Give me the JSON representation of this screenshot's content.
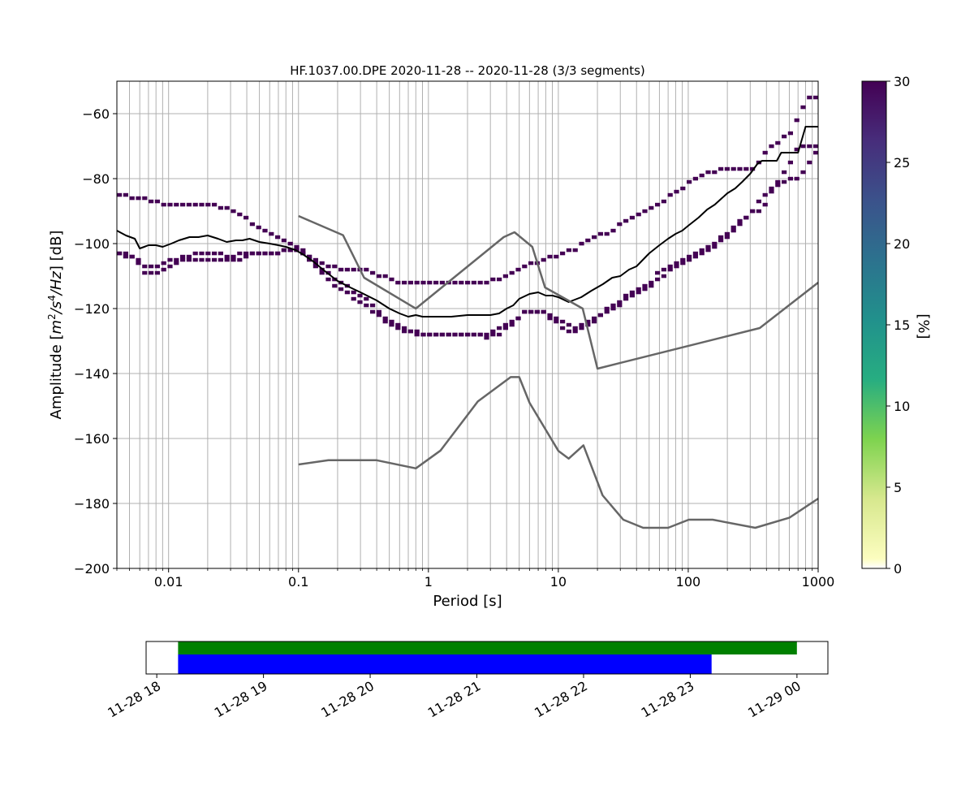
{
  "chart_data": [
    {
      "type": "heatmap",
      "title": "HF.1037.00.DPE   2020-11-28 -- 2020-11-28  (3/3 segments)",
      "xlabel": "Period [s]",
      "ylabel_prefix": "Amplitude [",
      "ylabel_unit_main": "m",
      "ylabel_unit_sup1": "2",
      "ylabel_unit_mid": "/s",
      "ylabel_unit_sup2": "4",
      "ylabel_unit_end": "/Hz",
      "ylabel_suffix": "] [dB]",
      "x_scale": "log",
      "xlim": [
        0.004,
        1000
      ],
      "ylim": [
        -200,
        -50
      ],
      "x_ticks": [
        0.01,
        0.1,
        1,
        10,
        100,
        1000
      ],
      "x_tick_labels": [
        "0.01",
        "0.1",
        "1",
        "10",
        "100",
        "1000"
      ],
      "y_ticks": [
        -200,
        -180,
        -160,
        -140,
        -120,
        -100,
        -80,
        -60
      ],
      "y_tick_labels": [
        "−200",
        "−180",
        "−160",
        "−140",
        "−120",
        "−100",
        "−80",
        "−60"
      ],
      "grid": true,
      "series": [
        {
          "kind": "mean-line",
          "color": "#000000",
          "x": [
            0.004,
            0.0047,
            0.0055,
            0.006,
            0.0065,
            0.007,
            0.008,
            0.009,
            0.0105,
            0.012,
            0.0145,
            0.017,
            0.02,
            0.024,
            0.028,
            0.033,
            0.037,
            0.042,
            0.05,
            0.06,
            0.07,
            0.08,
            0.095,
            0.11,
            0.13,
            0.16,
            0.2,
            0.25,
            0.3,
            0.4,
            0.5,
            0.6,
            0.7,
            0.8,
            0.9,
            1.0,
            1.5,
            2,
            2.5,
            3,
            3.5,
            4,
            4.5,
            5,
            6,
            7,
            8,
            9,
            10,
            12,
            15,
            18,
            22,
            26,
            30,
            35,
            40,
            50,
            60,
            70,
            80,
            90,
            100,
            120,
            140,
            160,
            200,
            230,
            260,
            300,
            340,
            370,
            400,
            480,
            520,
            600,
            700,
            800,
            1000
          ],
          "y": [
            -96,
            -97.5,
            -98.5,
            -101.5,
            -101,
            -100.5,
            -100.5,
            -101,
            -100,
            -99,
            -98,
            -98,
            -97.5,
            -98.5,
            -99.5,
            -99,
            -99,
            -98.5,
            -99.5,
            -100,
            -100.5,
            -101,
            -102,
            -103.5,
            -105.5,
            -108.5,
            -111.5,
            -113.5,
            -115,
            -117.5,
            -120,
            -121.5,
            -122.5,
            -122,
            -122.5,
            -122.5,
            -122.5,
            -122,
            -122,
            -122,
            -121.5,
            -120,
            -119,
            -117,
            -115.5,
            -115,
            -116,
            -116,
            -116.5,
            -118,
            -116.5,
            -114.5,
            -112.5,
            -110.5,
            -110,
            -108,
            -107,
            -103,
            -100.5,
            -98.5,
            -97,
            -96,
            -94.5,
            -92,
            -89.5,
            -88,
            -84.5,
            -83,
            -81,
            -78.5,
            -75.5,
            -74.5,
            -74.5,
            -74.5,
            -72,
            -72,
            -72,
            -64,
            -64
          ]
        },
        {
          "kind": "noise-model",
          "name": "NHNM",
          "color": "#666666",
          "x": [
            0.1,
            0.22,
            0.32,
            0.8,
            3.8,
            4.6,
            6.3,
            7.9,
            15.4,
            20,
            354.8,
            1000
          ],
          "y": [
            -91.5,
            -97.4,
            -110.5,
            -120,
            -98,
            -96.5,
            -101,
            -113.5,
            -120,
            -138.5,
            -126,
            -112
          ]
        },
        {
          "kind": "noise-model",
          "name": "NLNM",
          "color": "#666666",
          "x": [
            0.1,
            0.17,
            0.4,
            0.8,
            1.24,
            2.4,
            4.3,
            5,
            6,
            10,
            12,
            15.6,
            21.9,
            31.6,
            45,
            70,
            101,
            154,
            328,
            600,
            1000
          ],
          "y": [
            -168,
            -166.7,
            -166.7,
            -169.2,
            -163.7,
            -148.6,
            -141.1,
            -141.1,
            -149,
            -163.8,
            -166.2,
            -162.1,
            -177.5,
            -185,
            -187.5,
            -187.5,
            -185,
            -185,
            -187.5,
            -184.4,
            -178.5
          ]
        }
      ],
      "ppsd_bands": [
        {
          "name": "upper",
          "x": [
            0.004,
            0.005,
            0.0065,
            0.0085,
            0.012,
            0.02,
            0.03,
            0.04,
            0.06,
            0.08,
            0.1,
            0.12,
            0.15,
            0.2,
            0.3,
            0.45,
            0.6,
            0.8,
            1.2,
            2,
            3,
            4,
            5,
            6.5,
            8,
            10,
            13,
            16,
            20,
            25,
            30,
            40,
            50,
            60,
            75,
            90,
            110,
            130,
            170,
            220,
            300,
            400,
            600,
            800,
            1000
          ],
          "y": [
            -84.5,
            -85.5,
            -86.5,
            -87.5,
            -87.5,
            -87.5,
            -90,
            -93,
            -97,
            -100,
            -102,
            -104.5,
            -106.5,
            -107.5,
            -107.5,
            -110.5,
            -112,
            -111.5,
            -112.5,
            -112,
            -111.5,
            -110,
            -107,
            -106,
            -104.5,
            -103.5,
            -101.5,
            -99.5,
            -97.5,
            -96,
            -93.5,
            -91,
            -89,
            -87,
            -84.5,
            -82.5,
            -79.5,
            -78.5,
            -77.5,
            -76.5,
            -77.5,
            -70.5,
            -65.5,
            -54.5,
            -54.5
          ]
        },
        {
          "name": "middle",
          "x": [
            0.004,
            0.005,
            0.0065,
            0.008,
            0.01,
            0.013,
            0.017,
            0.022,
            0.028,
            0.035,
            0.05,
            0.07,
            0.09,
            0.11,
            0.14,
            0.2,
            0.3,
            0.4,
            0.5,
            0.65,
            0.8,
            1.0,
            1.5,
            2.5,
            3,
            3.5,
            4,
            4.5,
            5,
            6,
            7.5,
            9,
            11,
            13,
            16,
            20,
            25,
            30,
            40,
            50,
            60,
            80,
            100,
            130,
            170,
            200,
            300,
            400,
            600,
            700,
            1000
          ],
          "y": [
            -102.5,
            -103.5,
            -107.5,
            -107,
            -105,
            -104,
            -102.5,
            -102.5,
            -104.5,
            -103,
            -102.5,
            -102.5,
            -102,
            -103,
            -107.5,
            -112,
            -116.5,
            -121,
            -124.5,
            -126,
            -127.5,
            -128,
            -128,
            -128,
            -127.5,
            -126,
            -124.5,
            -123.5,
            -121.5,
            -120.5,
            -121,
            -123,
            -125,
            -126,
            -124.5,
            -122,
            -119,
            -117,
            -114,
            -111.5,
            -108,
            -105.5,
            -103.5,
            -101,
            -98.5,
            -96.5,
            -89.5,
            -83.5,
            -79.5,
            -79.5,
            -69.5
          ]
        },
        {
          "name": "lower",
          "x": [
            0.004,
            0.005,
            0.0065,
            0.008,
            0.01,
            0.013,
            0.017,
            0.022,
            0.028,
            0.035,
            0.05,
            0.07,
            0.09,
            0.11,
            0.14,
            0.2,
            0.3,
            0.4,
            0.5,
            0.65,
            0.8,
            1.0,
            1.5,
            2.5,
            3,
            3.5,
            4,
            4.5,
            5,
            6,
            7.5,
            9,
            11,
            13,
            16,
            20,
            25,
            30,
            40,
            50,
            60,
            80,
            100,
            130,
            170,
            200,
            300,
            350,
            700,
            1000
          ],
          "y": [
            -103,
            -104,
            -109.5,
            -108.5,
            -107,
            -105,
            -104.5,
            -104.5,
            -105,
            -104.5,
            -102.5,
            -102.5,
            -102,
            -104,
            -108.5,
            -114,
            -118.5,
            -122.5,
            -125.5,
            -127,
            -128,
            -128,
            -128,
            -128.5,
            -128.5,
            -127.5,
            -125.5,
            -124.5,
            -121.5,
            -121,
            -121.5,
            -124,
            -126.5,
            -126.5,
            -125.5,
            -122.5,
            -120.5,
            -118,
            -115,
            -112.5,
            -110,
            -107,
            -104.5,
            -102,
            -99.5,
            -97,
            -89.5,
            -89.5,
            -69.5,
            -69.5
          ]
        }
      ]
    },
    {
      "type": "heatmap",
      "name": "colorbar",
      "label": "[%]",
      "ylim": [
        0,
        30
      ],
      "ticks": [
        0,
        5,
        10,
        15,
        20,
        25,
        30
      ],
      "tick_labels": [
        "0",
        "5",
        "10",
        "15",
        "20",
        "25",
        "30"
      ],
      "colormap": [
        "#fcfdbf",
        "#d7e88e",
        "#7ed34f",
        "#27ad81",
        "#21918c",
        "#2c728e",
        "#3b528b",
        "#472d7b",
        "#440154"
      ],
      "colormap_low": "#ffffff"
    },
    {
      "type": "bar",
      "name": "data-coverage",
      "x_start": "2020-11-28 18:00",
      "x_end": "2020-11-29 00:00",
      "xlim_hours": [
        17.9,
        0.29
      ],
      "x_tick_labels": [
        "11-28 18",
        "11-28 19",
        "11-28 20",
        "11-28 21",
        "11-28 22",
        "11-28 23",
        "11-29 00"
      ],
      "bars": [
        {
          "color": "#008000",
          "start_hour": 18.2,
          "end_hour": 24.0
        },
        {
          "color": "#0000ff",
          "start_hour": 18.2,
          "end_hour": 23.2
        }
      ]
    }
  ],
  "colors": {
    "band": "#440154",
    "mean_line": "#000000",
    "noise_model": "#666666",
    "grid": "#b0b0b0"
  }
}
